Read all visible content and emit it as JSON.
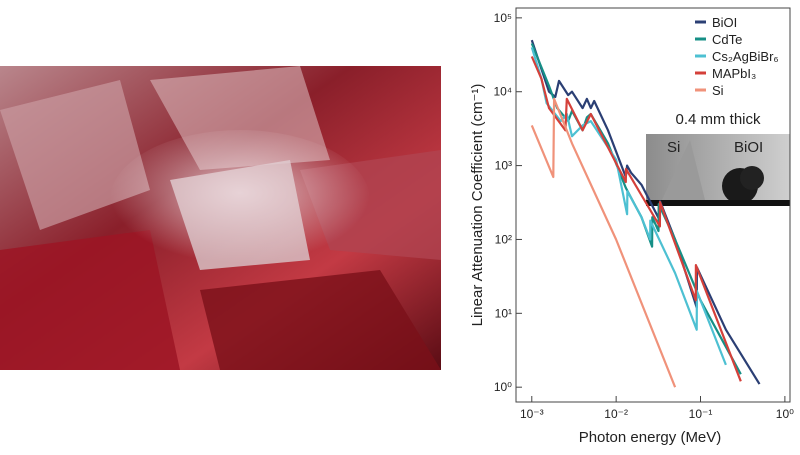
{
  "chart_data": {
    "type": "line",
    "xlabel": "Photon energy (MeV)",
    "ylabel": "Linear Attenuation Coefficient (cm⁻¹)",
    "xscale": "log",
    "yscale": "log",
    "xlim": [
      0.00065,
      1.15
    ],
    "ylim": [
      0.63,
      136000
    ],
    "xticks": [
      {
        "value": 0.001,
        "label": "10⁻³"
      },
      {
        "value": 0.01,
        "label": "10⁻²"
      },
      {
        "value": 0.1,
        "label": "10⁻¹"
      },
      {
        "value": 1,
        "label": "10⁰"
      }
    ],
    "yticks": [
      {
        "value": 1,
        "label": "10⁰"
      },
      {
        "value": 10,
        "label": "10¹"
      },
      {
        "value": 100,
        "label": "10²"
      },
      {
        "value": 1000,
        "label": "10³"
      },
      {
        "value": 10000,
        "label": "10⁴"
      },
      {
        "value": 100000,
        "label": "10⁵"
      }
    ],
    "legend": "upper right",
    "series": [
      {
        "name": "BiOI",
        "color": "#2b3f74",
        "x": [
          0.001,
          0.0016,
          0.0019,
          0.0021,
          0.0027,
          0.003,
          0.004,
          0.0045,
          0.005,
          0.0055,
          0.008,
          0.013,
          0.0135,
          0.015,
          0.02,
          0.033,
          0.0331,
          0.05,
          0.09,
          0.0905,
          0.2,
          0.5
        ],
        "values": [
          50000,
          10000,
          8500,
          14000,
          9000,
          10000,
          6000,
          8000,
          6000,
          7500,
          3000,
          700,
          1000,
          800,
          550,
          180,
          330,
          100,
          12,
          42,
          6,
          1.1
        ]
      },
      {
        "name": "CdTe",
        "color": "#168f86",
        "x": [
          0.001,
          0.0016,
          0.002,
          0.0027,
          0.003,
          0.004,
          0.0045,
          0.005,
          0.008,
          0.013,
          0.02,
          0.0267,
          0.0268,
          0.0318,
          0.0319,
          0.05,
          0.1,
          0.3
        ],
        "values": [
          45000,
          12000,
          6000,
          4000,
          5500,
          3000,
          4500,
          5000,
          2000,
          500,
          200,
          80,
          200,
          130,
          300,
          100,
          15,
          1.5
        ]
      },
      {
        "name": "Cs₂AgBiBr₆",
        "color": "#4dc0d2",
        "x": [
          0.001,
          0.0013,
          0.0015,
          0.0022,
          0.0026,
          0.003,
          0.004,
          0.005,
          0.01,
          0.0135,
          0.0136,
          0.02,
          0.0253,
          0.0254,
          0.05,
          0.09,
          0.0905,
          0.2
        ],
        "values": [
          40000,
          15000,
          7000,
          4000,
          5000,
          2500,
          3500,
          4000,
          1200,
          220,
          450,
          200,
          100,
          180,
          35,
          6,
          20,
          2
        ]
      },
      {
        "name": "MAPbI₃",
        "color": "#d4403a",
        "x": [
          0.001,
          0.0013,
          0.0016,
          0.0025,
          0.0026,
          0.004,
          0.005,
          0.013,
          0.0131,
          0.033,
          0.0331,
          0.088,
          0.0881,
          0.3
        ],
        "values": [
          30000,
          15000,
          6000,
          3000,
          8000,
          3000,
          5000,
          600,
          900,
          150,
          320,
          15,
          45,
          1.2
        ]
      },
      {
        "name": "Si",
        "color": "#f0927a",
        "x": [
          0.001,
          0.0018,
          0.00184,
          0.003,
          0.01,
          0.05
        ],
        "values": [
          3500,
          700,
          8000,
          2000,
          100,
          1
        ]
      }
    ],
    "inset_title": "0.4 mm thick",
    "inset_labels": [
      "Si",
      "BiOI"
    ]
  }
}
